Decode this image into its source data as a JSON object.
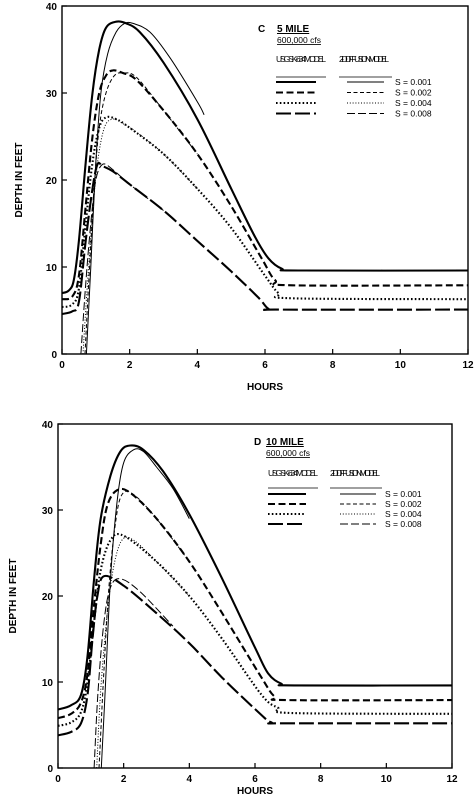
{
  "chart_data": [
    {
      "type": "line",
      "panel_letter": "C",
      "title": "5 MILE",
      "subtitle": "600,000 cfs",
      "xlabel": "HOURS",
      "ylabel": "DEPTH IN FEET",
      "xlim": [
        0,
        12
      ],
      "ylim": [
        0,
        40
      ],
      "xticks": [
        0,
        2,
        4,
        6,
        8,
        10,
        12
      ],
      "yticks": [
        0,
        10,
        20,
        30,
        40
      ],
      "grid": false,
      "legend_position": "top-right",
      "legend_headers": [
        "USGSK-634 MODEL",
        "2- D DIFFUSION MODEL"
      ],
      "series": [
        {
          "name": "S = 0.001",
          "model": "USGSK-634",
          "dash": "solid",
          "x": [
            0,
            0.2,
            0.35,
            0.5,
            0.7,
            0.9,
            1.1,
            1.3,
            1.6,
            1.9,
            2.3,
            3,
            4,
            5,
            5.7,
            6.1,
            6.5,
            7,
            12
          ],
          "y": [
            7,
            7.3,
            8.5,
            13,
            22,
            30,
            35,
            37.5,
            38.2,
            38,
            37,
            33.5,
            27,
            19,
            13.5,
            11,
            9.8,
            9.6,
            9.6
          ]
        },
        {
          "name": "S = 0.002",
          "model": "USGSK-634",
          "dash": "dashed",
          "x": [
            0,
            0.3,
            0.5,
            0.7,
            0.9,
            1.1,
            1.3,
            1.5,
            1.8,
            2.2,
            3,
            4,
            5,
            5.9,
            6.3,
            6.8,
            12
          ],
          "y": [
            6.3,
            6.6,
            9,
            17,
            25,
            30,
            32,
            32.6,
            32.3,
            31.5,
            28,
            23,
            17,
            11,
            8.5,
            7.9,
            7.9
          ]
        },
        {
          "name": "S = 0.004",
          "model": "USGSK-634",
          "dash": "dotted",
          "x": [
            0,
            0.3,
            0.5,
            0.7,
            0.9,
            1.1,
            1.3,
            1.6,
            2,
            3,
            4,
            5,
            6,
            6.4,
            6.8,
            12
          ],
          "y": [
            5.4,
            5.7,
            7.5,
            15,
            22,
            26,
            27.2,
            27,
            26,
            23,
            19,
            14.5,
            9,
            7,
            6.4,
            6.3
          ]
        },
        {
          "name": "S = 0.008",
          "model": "USGSK-634",
          "dash": "long-dash",
          "x": [
            0,
            0.3,
            0.5,
            0.7,
            0.9,
            1.05,
            1.2,
            1.5,
            2,
            3,
            4,
            5,
            5.8,
            6.1,
            6.4,
            12
          ],
          "y": [
            4.6,
            4.9,
            6,
            13,
            19,
            21.8,
            21.6,
            21,
            19.5,
            16.5,
            13,
            9.5,
            6.5,
            5.2,
            5.1,
            5.1
          ]
        },
        {
          "name": "S = 0.001",
          "model": "2-D DIFFUSION",
          "dash": "solid",
          "x": [
            0.72,
            0.85,
            1.0,
            1.15,
            1.35,
            1.6,
            1.85,
            2.1,
            2.6,
            3.2,
            4,
            4.2
          ],
          "y": [
            0,
            10,
            22,
            30,
            34.5,
            37,
            38,
            38,
            37,
            34,
            29,
            27.5
          ]
        },
        {
          "name": "S = 0.002",
          "model": "2-D DIFFUSION",
          "dash": "dashed",
          "x": [
            0.68,
            0.8,
            0.95,
            1.1,
            1.3,
            1.55,
            1.8,
            2.2,
            3,
            4
          ],
          "y": [
            0,
            9,
            19,
            26,
            30,
            32,
            32.3,
            31.8,
            28,
            23
          ]
        },
        {
          "name": "S = 0.004",
          "model": "2-D DIFFUSION",
          "dash": "dotted",
          "x": [
            0.62,
            0.75,
            0.9,
            1.05,
            1.25,
            1.5,
            1.8,
            2.2,
            3,
            4
          ],
          "y": [
            0,
            8,
            16,
            22,
            26,
            27,
            26.5,
            25.5,
            23,
            19
          ]
        },
        {
          "name": "S = 0.008",
          "model": "2-D DIFFUSION",
          "dash": "long-dash",
          "x": [
            0.56,
            0.7,
            0.85,
            1.0,
            1.2,
            1.5,
            2,
            3
          ],
          "y": [
            0,
            8,
            15,
            20,
            21.8,
            21.2,
            19.5,
            16.5
          ]
        }
      ]
    },
    {
      "type": "line",
      "panel_letter": "D",
      "title": "10 MILE",
      "subtitle": "600,000 cfs",
      "xlabel": "HOURS",
      "ylabel": "DEPTH IN FEET",
      "xlim": [
        0,
        12
      ],
      "ylim": [
        0,
        40
      ],
      "xticks": [
        0,
        2,
        4,
        6,
        8,
        10,
        12
      ],
      "yticks": [
        0,
        10,
        20,
        30,
        40
      ],
      "grid": false,
      "legend_position": "top-right",
      "legend_headers": [
        "USGSK-634 MODEL",
        "2- D DIFFUSION MODEL"
      ],
      "series": [
        {
          "name": "S = 0.001",
          "model": "USGSK-634",
          "dash": "solid",
          "x": [
            0,
            0.4,
            0.7,
            0.9,
            1.1,
            1.3,
            1.6,
            1.9,
            2.2,
            2.6,
            3.2,
            4,
            5,
            6,
            6.4,
            6.8,
            7.2,
            12
          ],
          "y": [
            6.8,
            7.3,
            8.5,
            13,
            22,
            29,
            34,
            36.8,
            37.5,
            37,
            34.5,
            29.5,
            22,
            14,
            11,
            9.8,
            9.6,
            9.6
          ]
        },
        {
          "name": "S = 0.002",
          "model": "USGSK-634",
          "dash": "dashed",
          "x": [
            0,
            0.4,
            0.7,
            0.9,
            1.1,
            1.3,
            1.5,
            1.8,
            2.2,
            3,
            4,
            5,
            6.2,
            6.6,
            7,
            12
          ],
          "y": [
            5.8,
            6.3,
            7.6,
            11,
            19,
            26,
            30.5,
            32.3,
            32,
            29,
            24,
            18,
            10.5,
            8.3,
            7.9,
            7.9
          ]
        },
        {
          "name": "S = 0.004",
          "model": "USGSK-634",
          "dash": "dotted",
          "x": [
            0,
            0.4,
            0.7,
            0.9,
            1.1,
            1.3,
            1.6,
            2,
            3,
            4,
            5,
            6.2,
            6.7,
            7.1,
            12
          ],
          "y": [
            4.9,
            5.3,
            6.5,
            10,
            17,
            23,
            26.5,
            27,
            24,
            20,
            15,
            8.5,
            7,
            6.4,
            6.3
          ]
        },
        {
          "name": "S = 0.008",
          "model": "USGSK-634",
          "dash": "long-dash",
          "x": [
            0,
            0.4,
            0.7,
            0.9,
            1.05,
            1.2,
            1.4,
            2,
            3,
            4,
            5,
            6.1,
            6.5,
            6.9,
            12
          ],
          "y": [
            3.8,
            4.2,
            5.2,
            8.5,
            15,
            20,
            22.3,
            21.2,
            18,
            14.5,
            10.5,
            6.5,
            5.3,
            5.2,
            5.2
          ]
        },
        {
          "name": "S = 0.001",
          "model": "2-D DIFFUSION",
          "dash": "solid",
          "x": [
            1.32,
            1.45,
            1.6,
            1.8,
            2.0,
            2.3,
            2.6,
            3,
            3.5,
            4
          ],
          "y": [
            0,
            10,
            22,
            31,
            35.5,
            37,
            36.8,
            35,
            32.5,
            29
          ]
        },
        {
          "name": "S = 0.002",
          "model": "2-D DIFFUSION",
          "dash": "dashed",
          "x": [
            1.25,
            1.38,
            1.55,
            1.75,
            1.95,
            2.3,
            3,
            4
          ],
          "y": [
            0,
            10,
            21,
            28.5,
            31.8,
            31.8,
            29,
            24
          ]
        },
        {
          "name": "S = 0.004",
          "model": "2-D DIFFUSION",
          "dash": "dotted",
          "x": [
            1.18,
            1.3,
            1.5,
            1.7,
            1.95,
            2.3,
            3,
            4
          ],
          "y": [
            0,
            9,
            18,
            23.5,
            26.5,
            26.5,
            24,
            20
          ]
        },
        {
          "name": "S = 0.008",
          "model": "2-D DIFFUSION",
          "dash": "long-dash",
          "x": [
            1.1,
            1.22,
            1.4,
            1.6,
            1.9,
            2.5,
            3.5
          ],
          "y": [
            0,
            9,
            17,
            21,
            22,
            20.5,
            16.5
          ]
        }
      ]
    }
  ]
}
